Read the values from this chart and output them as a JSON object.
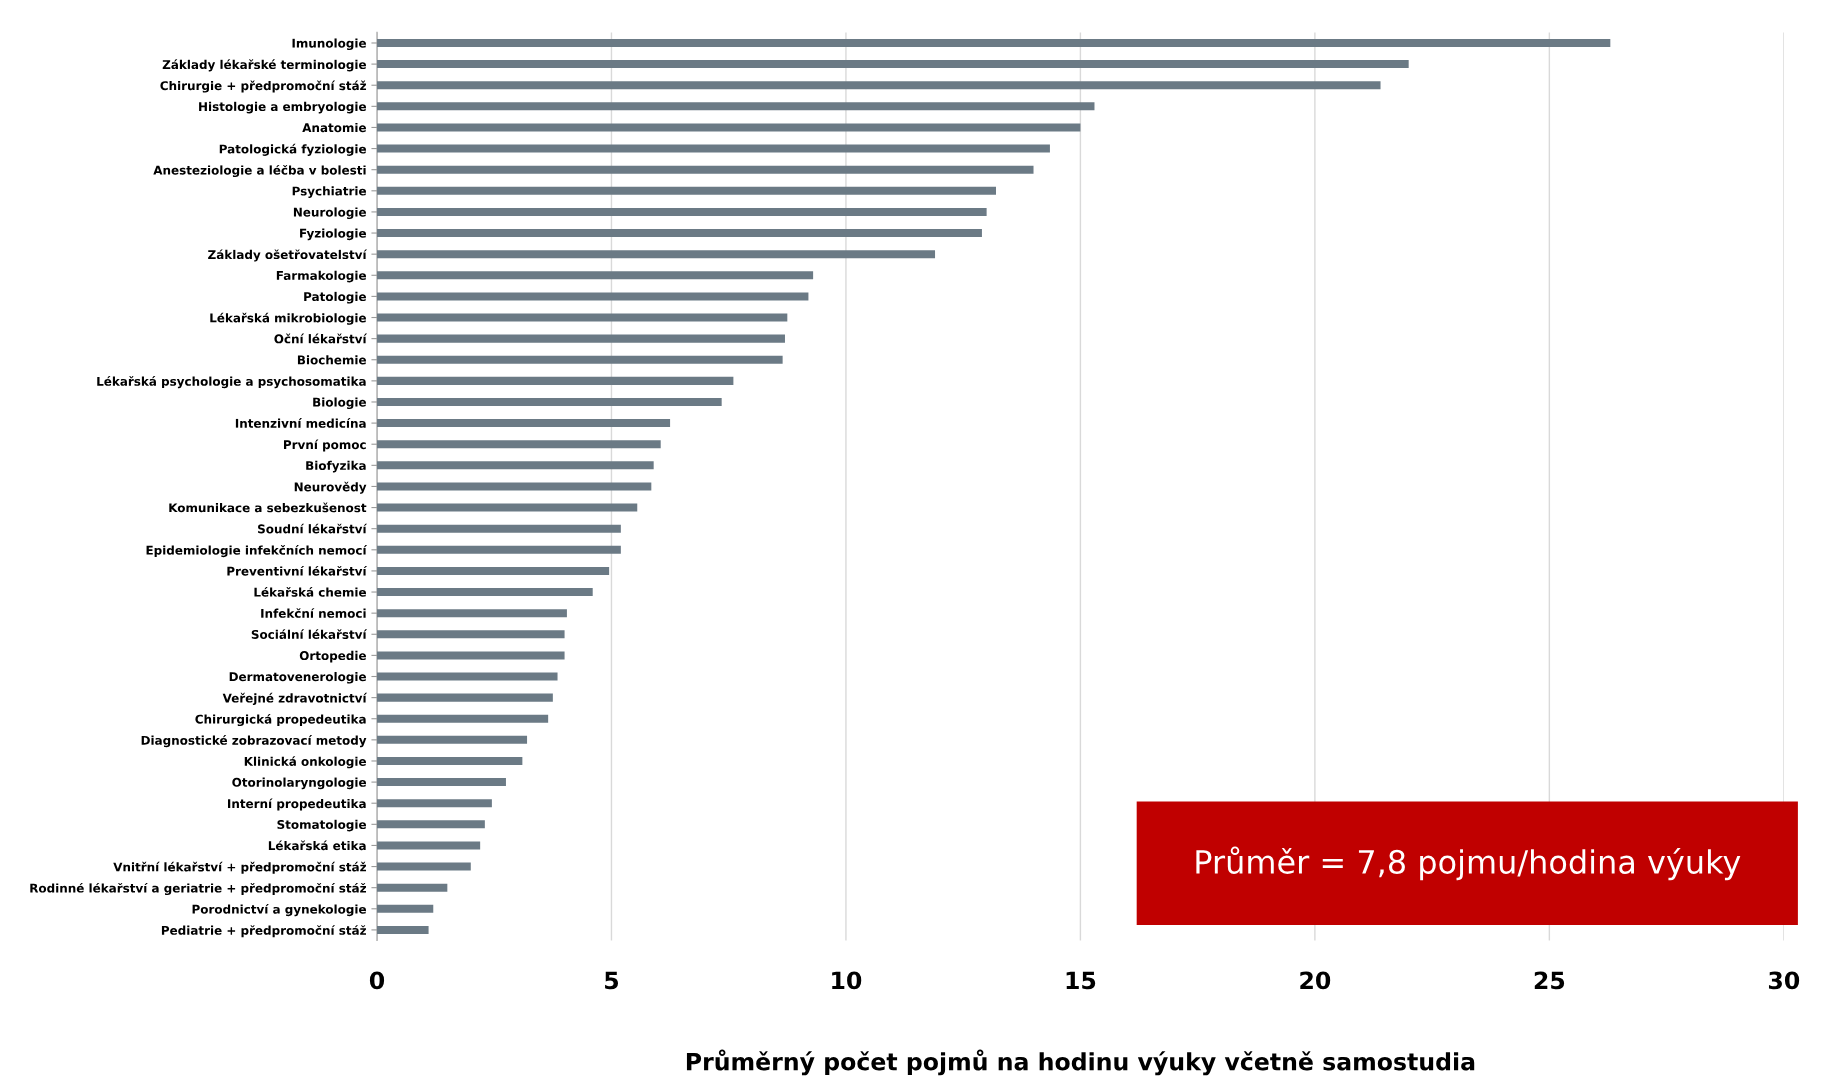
{
  "chart_data": {
    "type": "bar",
    "orientation": "horizontal",
    "xlabel": "Průměrný počet pojmů na hodinu výuky včetně samostudia",
    "categories": [
      "Imunologie",
      "Základy lékařské terminologie",
      "Chirurgie + předpromoční stáž",
      "Histologie a embryologie",
      "Anatomie",
      "Patologická fyziologie",
      "Anesteziologie a léčba v bolesti",
      "Psychiatrie",
      "Neurologie",
      "Fyziologie",
      "Základy ošetřovatelství",
      "Farmakologie",
      "Patologie",
      "Lékařská mikrobiologie",
      "Oční lékařství",
      "Biochemie",
      "Lékařská psychologie a psychosomatika",
      "Biologie",
      "Intenzivní medicína",
      "První pomoc",
      "Biofyzika",
      "Neurovědy",
      "Komunikace a sebezkušenost",
      "Soudní lékařství",
      "Epidemiologie infekčních nemocí",
      "Preventivní lékařství",
      "Lékařská chemie",
      "Infekční nemoci",
      "Sociální lékařství",
      "Ortopedie",
      "Dermatovenerologie",
      "Veřejné zdravotnictví",
      "Chirurgická propedeutika",
      "Diagnostické zobrazovací metody",
      "Klinická onkologie",
      "Otorinolaryngologie",
      "Interní propedeutika",
      "Stomatologie",
      "Lékařská etika",
      "Vnitřní lékařství + předpromoční stáž",
      "Rodinné lékařství a geriatrie + předpromoční stáž",
      "Porodnictví a gynekologie",
      "Pediatrie + předpromoční stáž"
    ],
    "values": [
      26.3,
      22.0,
      21.4,
      15.3,
      15.0,
      14.35,
      14.0,
      13.2,
      13.0,
      12.9,
      11.9,
      9.3,
      9.2,
      8.75,
      8.7,
      8.65,
      7.6,
      7.35,
      6.25,
      6.05,
      5.9,
      5.85,
      5.55,
      5.2,
      5.2,
      4.95,
      4.6,
      4.05,
      4.0,
      4.0,
      3.85,
      3.75,
      3.65,
      3.2,
      3.1,
      2.75,
      2.45,
      2.3,
      2.2,
      2.0,
      1.5,
      1.2,
      1.1
    ],
    "color": "#6b7a85",
    "xlim": [
      0,
      30
    ],
    "xticks": [
      0,
      5,
      10,
      15,
      20,
      25,
      30
    ],
    "grid": "x",
    "annotations": [
      "Průměr = 7,8 pojmu/hodina výuky"
    ]
  }
}
